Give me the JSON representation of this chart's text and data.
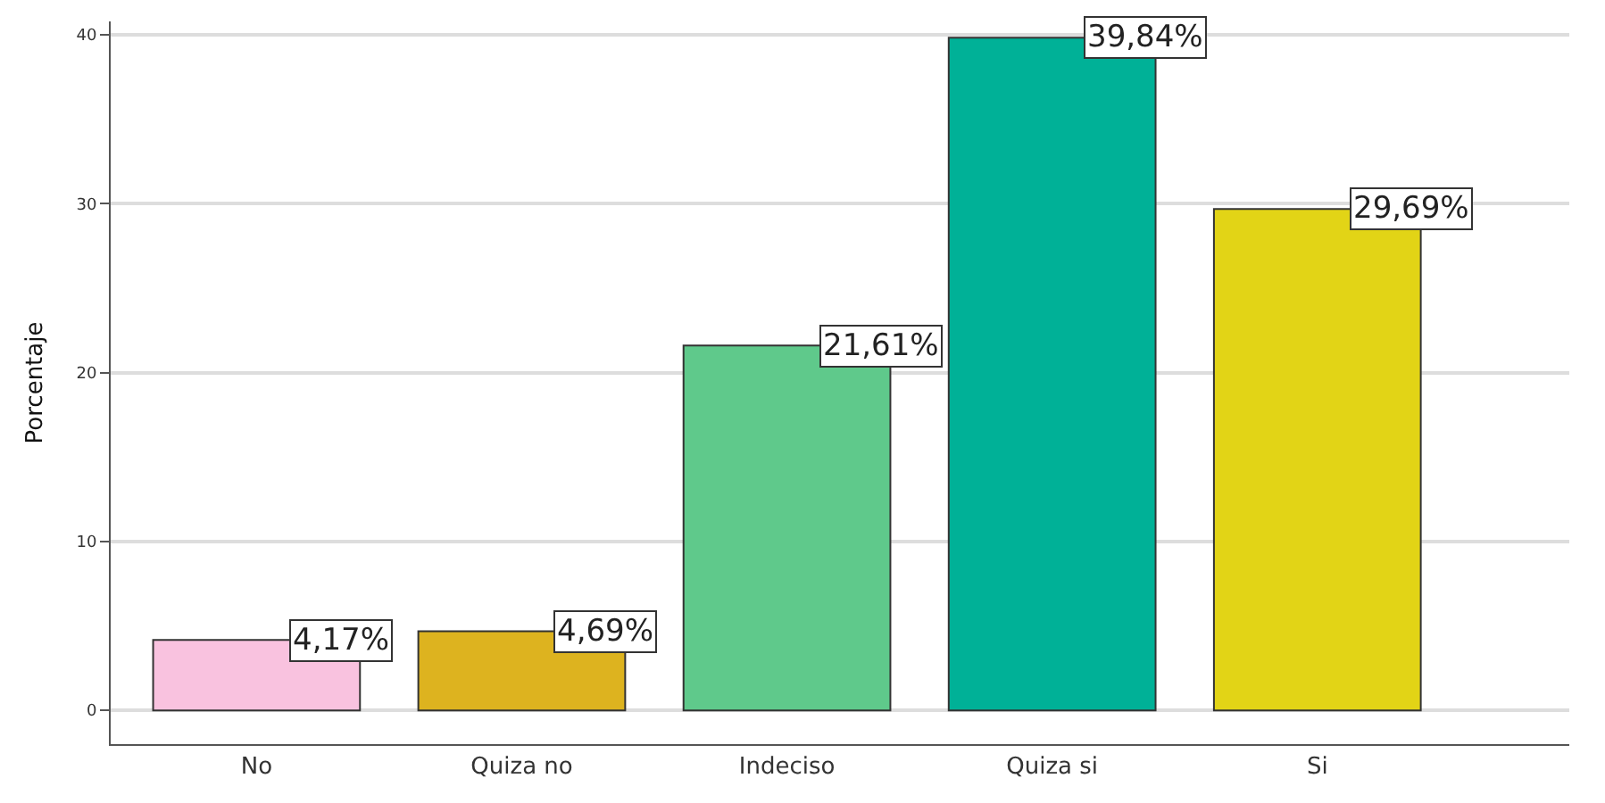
{
  "chart_data": {
    "type": "bar",
    "ylabel": "Porcentaje",
    "categories": [
      "No",
      "Quiza no",
      "Indeciso",
      "Quiza si",
      "Si"
    ],
    "values": [
      4.17,
      4.69,
      21.61,
      39.84,
      29.69
    ],
    "colors": [
      "#f9c2df",
      "#ddb31f",
      "#5fc98b",
      "#00b197",
      "#e2d416"
    ],
    "value_labels": [
      "4,17%",
      "4,69%",
      "21,61%",
      "39,84%",
      "29,69%"
    ],
    "ylim": [
      -2,
      40.8
    ],
    "yticks": [
      0,
      10,
      20,
      30,
      40
    ],
    "grid": "y"
  }
}
